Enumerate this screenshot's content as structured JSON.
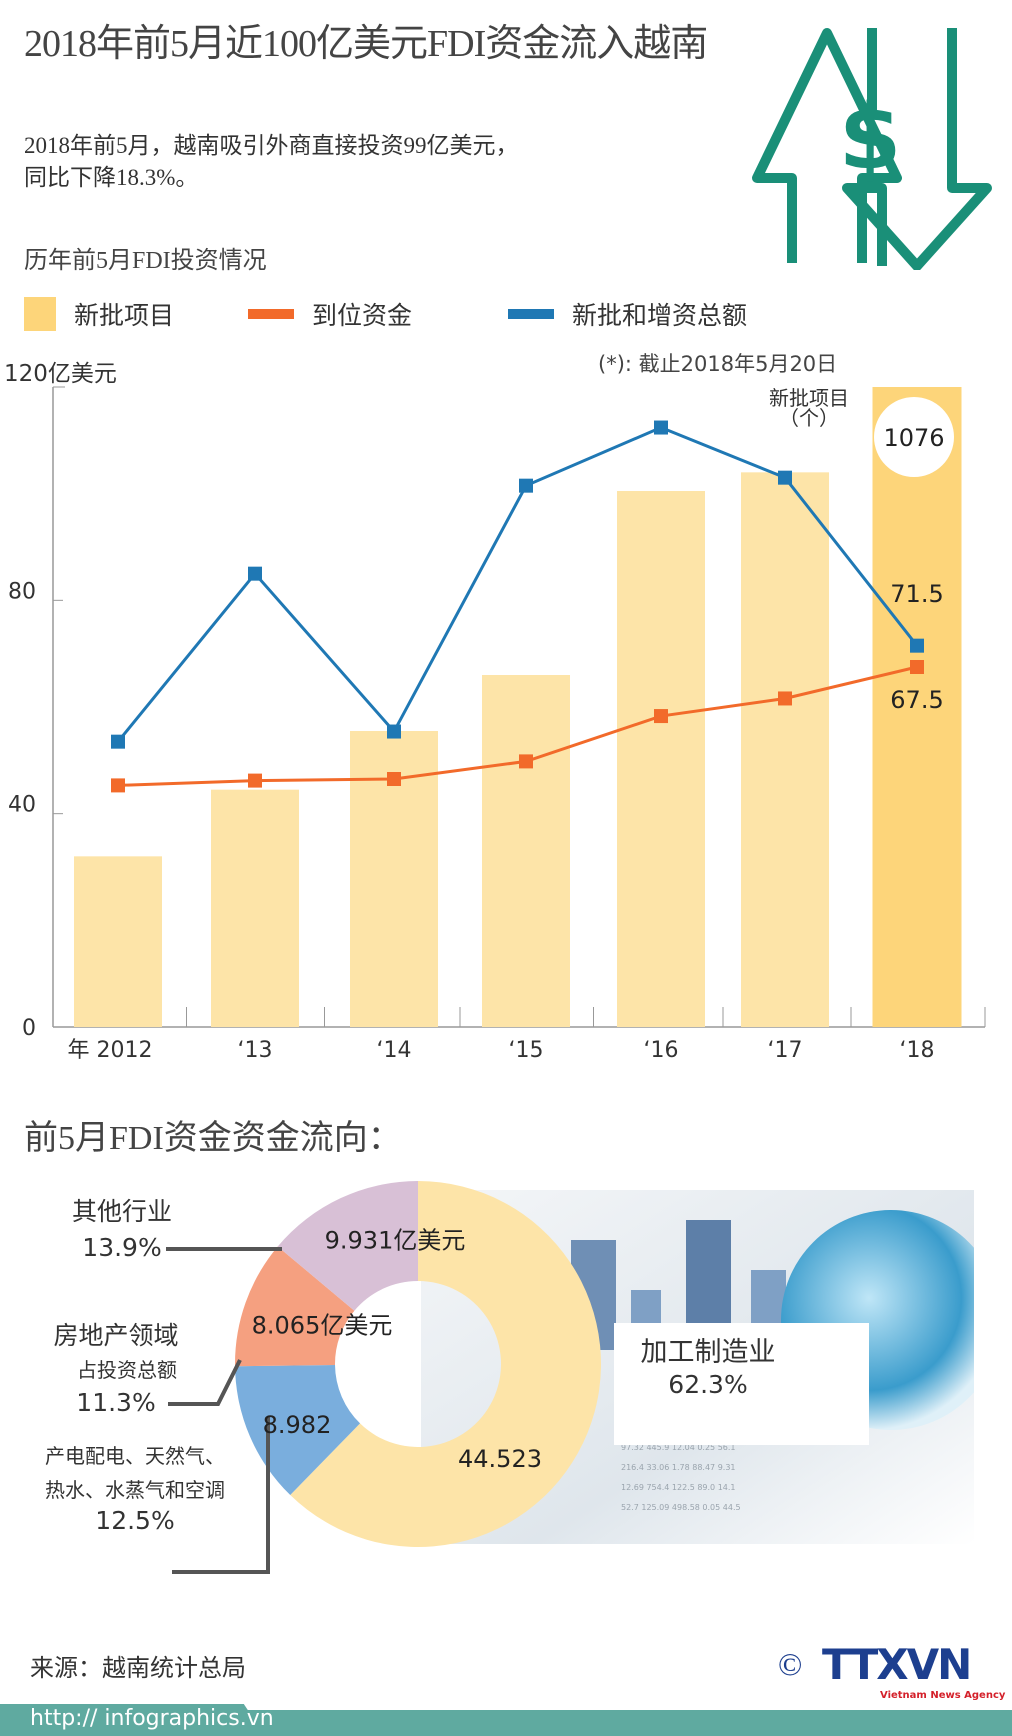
{
  "title": "2018年前5月近100亿美元FDI资金流入越南",
  "summary": [
    "2018年前5月，越南吸引外商直接投资99亿美元，",
    "同比下降18.3%。"
  ],
  "section1_title": "历年前5月FDI投资情况",
  "colors": {
    "teal": "#1a8f78",
    "bar": "#fde4a8",
    "bar_highlight": "#fdd57a",
    "orange": "#f26a2a",
    "blue": "#1f78b4",
    "donut_manufacturing": "#fde4a8",
    "donut_electricity": "#7aaedd",
    "donut_realestate": "#f5a080",
    "donut_other": "#d8c0d6"
  },
  "icon": "dollar-up-down-arrows-icon",
  "chart_data": {
    "type": "bar+line",
    "legend": [
      {
        "name": "新批项目",
        "kind": "bar"
      },
      {
        "name": "到位资金",
        "kind": "line"
      },
      {
        "name": "新批和增资总额",
        "kind": "line"
      }
    ],
    "legend_placement": "top",
    "unit_label": "120亿美元",
    "note": "(*): 截止2018年5月20日",
    "ylim": [
      0,
      120
    ],
    "yticks": [
      "0",
      "40",
      "80"
    ],
    "categories": [
      "年 2012",
      "‘13",
      "‘14",
      "‘15",
      "‘16",
      "‘17",
      "‘18"
    ],
    "bars": {
      "name": "新批项目",
      "values": [
        32,
        44.5,
        55.5,
        66,
        100.5,
        104,
        120
      ],
      "highlight_index": 6
    },
    "series": [
      {
        "name": "到位资金",
        "values": [
          45.3,
          46.2,
          46.5,
          49.8,
          58.3,
          61.6,
          67.5
        ]
      },
      {
        "name": "新批和增资总额",
        "values": [
          53.5,
          85,
          55.4,
          101.5,
          112.4,
          103,
          71.5
        ]
      }
    ],
    "annotations": {
      "bar_label": "新批项目",
      "bar_label_unit": "（个）",
      "bar_value": "1076",
      "blue_last": "71.5",
      "orange_last": "67.5"
    },
    "grid": false
  },
  "section2_title": "前5月FDI资金资金流向：",
  "donut": {
    "type": "pie",
    "slices": [
      {
        "name": "加工制造业",
        "percent": "62.3%",
        "value": "44.523",
        "pct": 62.3
      },
      {
        "name": "产电配电、天然气、热水、水蒸气和空调",
        "percent": "12.5%",
        "value": "8.982",
        "pct": 12.5
      },
      {
        "name": "房地产领域",
        "sub": "占投资总额",
        "percent": "11.3%",
        "value": "8.065亿美元",
        "pct": 11.3
      },
      {
        "name": "其他行业",
        "percent": "13.9%",
        "value": "9.931亿美元",
        "pct": 13.9
      }
    ],
    "electricity_line1": "产电配电、天然气、",
    "electricity_line2": "热水、水蒸气和空调"
  },
  "source": "来源：越南统计总局",
  "logo": {
    "copyright": "©",
    "text": "TTXVN",
    "tagline": "Vietnam News Agency"
  },
  "url": "http:// infographics.vn"
}
